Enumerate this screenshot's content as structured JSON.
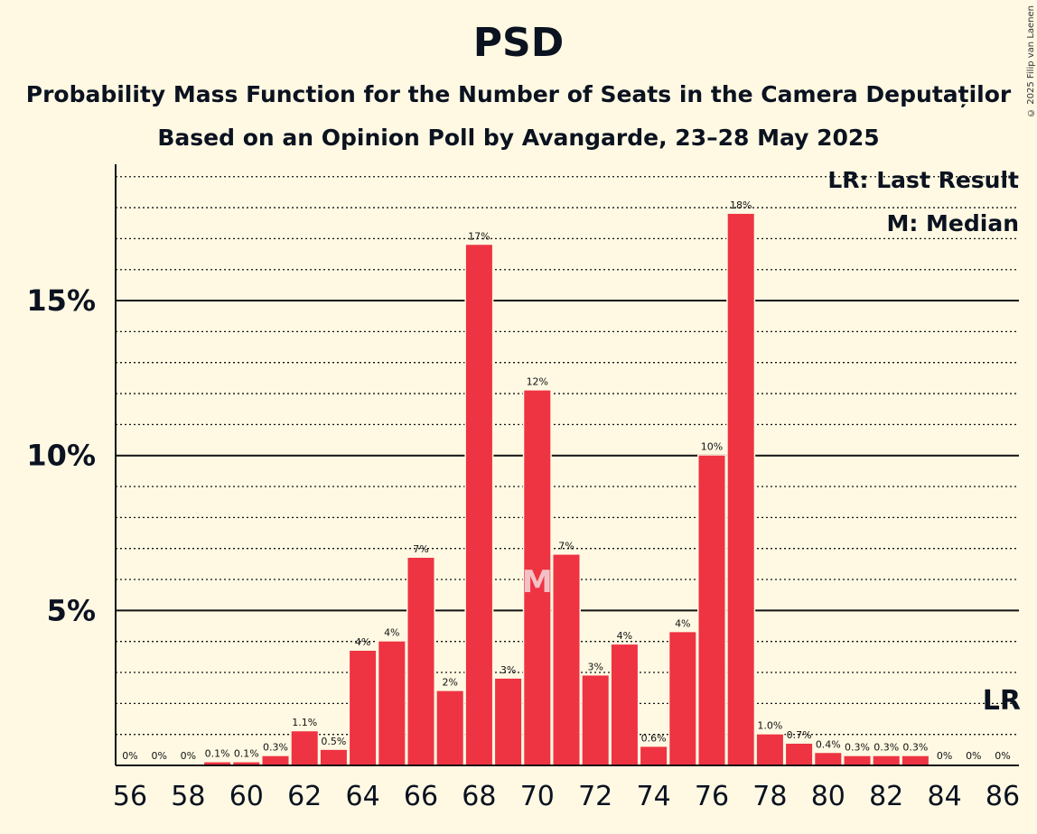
{
  "title": "PSD",
  "subtitle1": "Probability Mass Function for the Number of Seats in the Camera Deputaților",
  "subtitle2": "Based on an Opinion Poll by Avangarde, 23–28 May 2025",
  "copyright": "© 2025 Filip van Laenen",
  "legend": {
    "last_result": "LR: Last Result",
    "median": "M: Median"
  },
  "colors": {
    "bar": "#ee3342",
    "background": "#fff9e3",
    "text": "#0b1220"
  },
  "chart_data": {
    "type": "bar",
    "title": "PSD",
    "xlabel": "",
    "ylabel": "",
    "x": [
      56,
      57,
      58,
      59,
      60,
      61,
      62,
      63,
      64,
      65,
      66,
      67,
      68,
      69,
      70,
      71,
      72,
      73,
      74,
      75,
      76,
      77,
      78,
      79,
      80,
      81,
      82,
      83,
      84,
      85,
      86
    ],
    "values": [
      0,
      0,
      0,
      0.1,
      0.1,
      0.3,
      1.1,
      0.5,
      3.7,
      4.0,
      6.7,
      2.4,
      16.8,
      2.8,
      12.1,
      6.8,
      2.9,
      3.9,
      0.6,
      4.3,
      10.0,
      17.8,
      1.0,
      0.7,
      0.4,
      0.3,
      0.3,
      0.3,
      0,
      0,
      0
    ],
    "labels": [
      "0%",
      "0%",
      "0%",
      "0.1%",
      "0.1%",
      "0.3%",
      "1.1%",
      "0.5%",
      "4%",
      "4%",
      "7%",
      "2%",
      "17%",
      "3%",
      "12%",
      "7%",
      "3%",
      "4%",
      "0.6%",
      "4%",
      "10%",
      "18%",
      "1.0%",
      "0.7%",
      "0.4%",
      "0.3%",
      "0.3%",
      "0.3%",
      "0%",
      "0%",
      "0%"
    ],
    "x_ticks": [
      56,
      58,
      60,
      62,
      64,
      66,
      68,
      70,
      72,
      74,
      76,
      78,
      80,
      82,
      84,
      86
    ],
    "y_ticks": [
      5,
      10,
      15
    ],
    "y_tick_labels": [
      "5%",
      "10%",
      "15%"
    ],
    "ylim": [
      0,
      19.4
    ],
    "minor_grid_step": 1,
    "median": 70,
    "median_marker": "M",
    "last_result": 86,
    "last_result_marker": "LR"
  }
}
